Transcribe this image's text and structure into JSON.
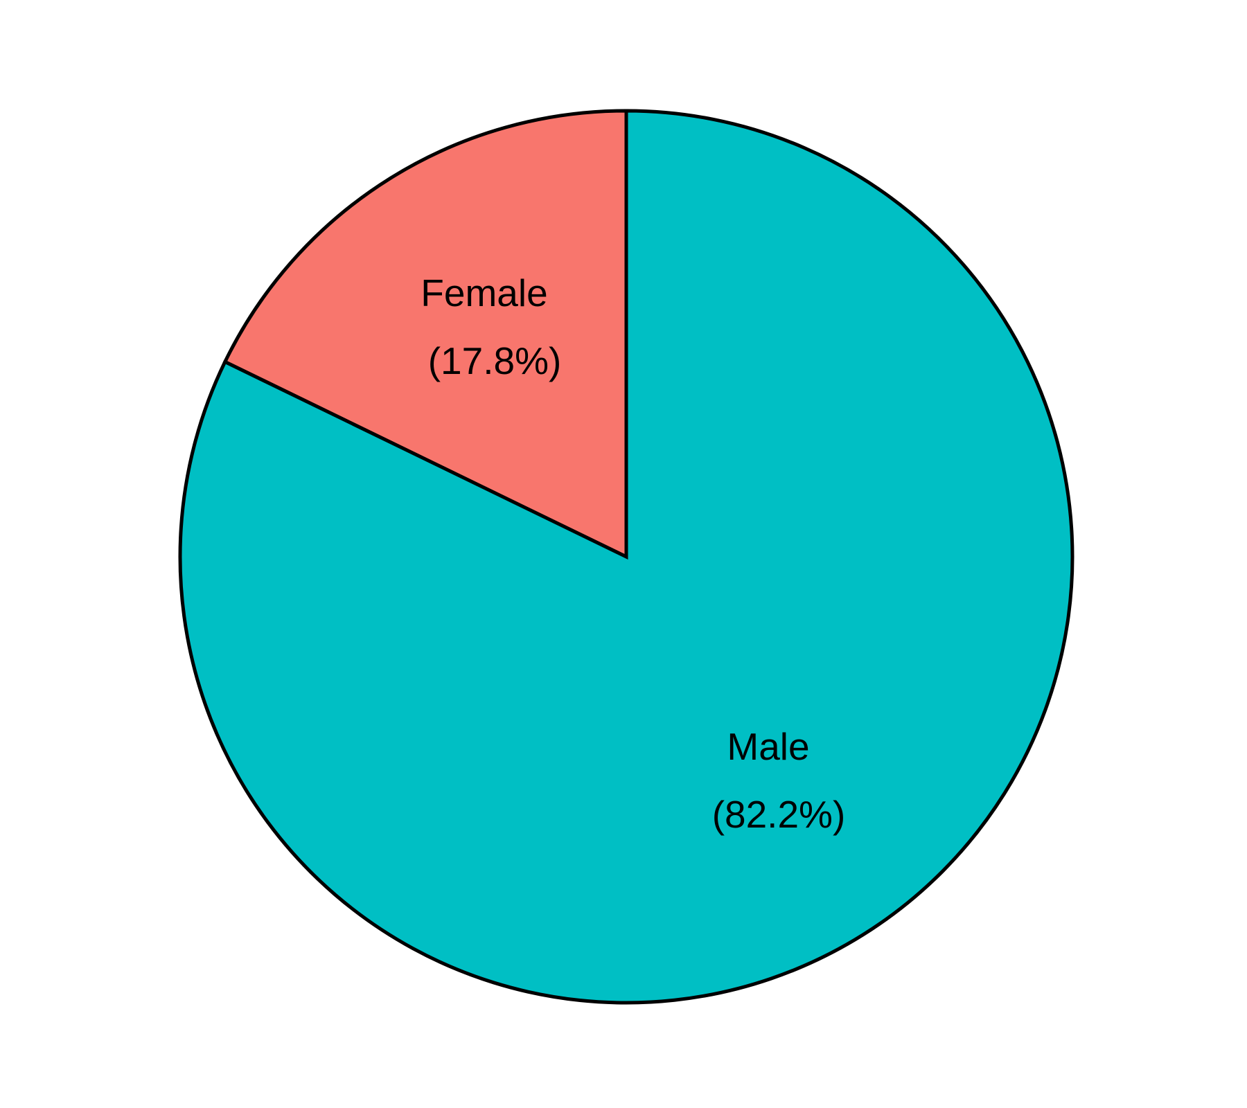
{
  "chart_data": {
    "type": "pie",
    "categories": [
      "Female",
      "Male"
    ],
    "values": [
      17.8,
      82.2
    ],
    "value_labels": [
      "(17.8%)",
      "(82.2%)"
    ],
    "colors": [
      "#F8766D",
      "#00BFC4"
    ]
  }
}
